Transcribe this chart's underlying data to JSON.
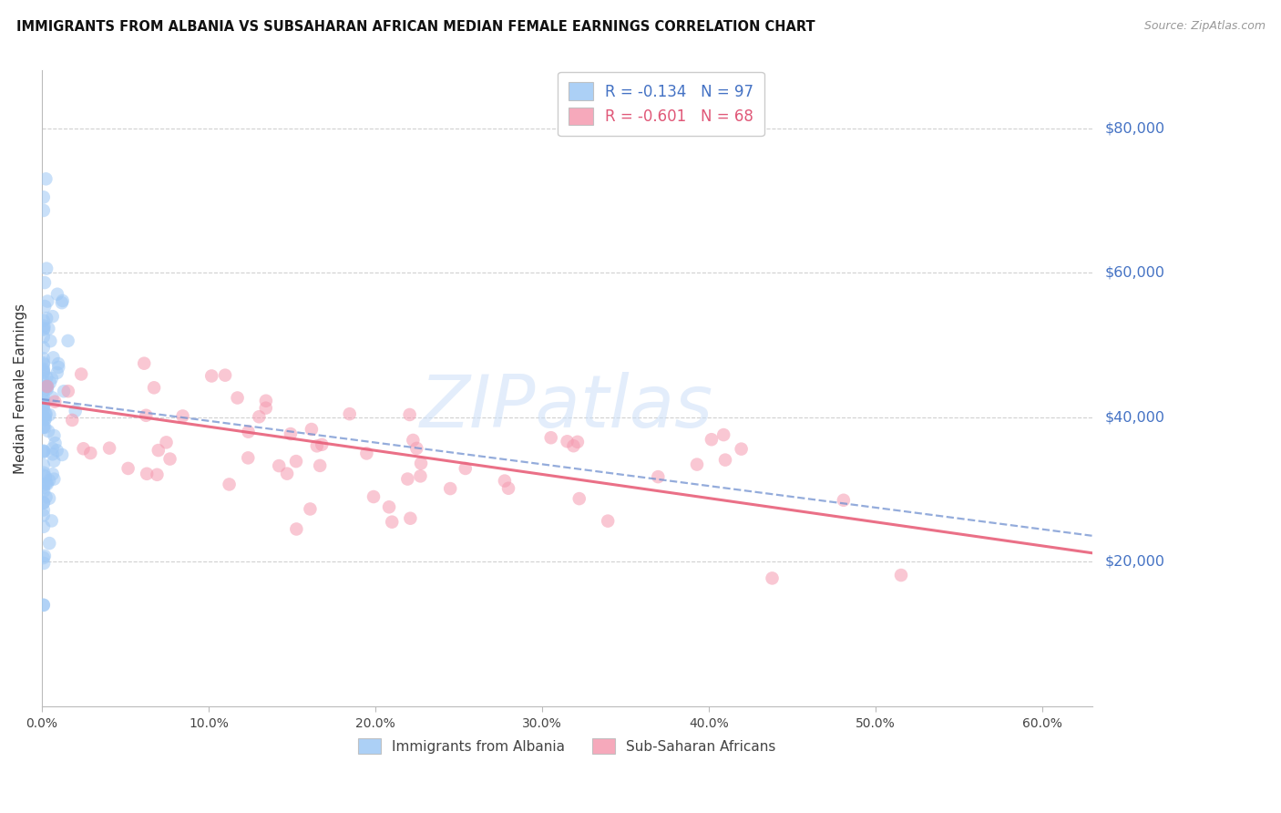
{
  "title": "IMMIGRANTS FROM ALBANIA VS SUBSAHARAN AFRICAN MEDIAN FEMALE EARNINGS CORRELATION CHART",
  "source": "Source: ZipAtlas.com",
  "ylabel": "Median Female Earnings",
  "ytick_values": [
    20000,
    40000,
    60000,
    80000
  ],
  "ytick_labels": [
    "$20,000",
    "$40,000",
    "$60,000",
    "$80,000"
  ],
  "ylim": [
    0,
    88000
  ],
  "xlim": [
    0.0,
    0.63
  ],
  "xtick_positions": [
    0.0,
    0.1,
    0.2,
    0.3,
    0.4,
    0.5,
    0.6
  ],
  "xtick_labels": [
    "0.0%",
    "10.0%",
    "20.0%",
    "30.0%",
    "40.0%",
    "50.0%",
    "60.0%"
  ],
  "watermark": "ZIPatlas",
  "albania_R": "-0.134",
  "albania_N": "97",
  "subsaharan_R": "-0.601",
  "subsaharan_N": "68",
  "albania_color": "#9ec8f5",
  "subsaharan_color": "#f59ab0",
  "albania_line_color": "#7090d0",
  "subsaharan_line_color": "#e8607a",
  "background_color": "#ffffff",
  "grid_color": "#d0d0d0",
  "ytick_color": "#4472c4",
  "title_color": "#111111",
  "source_color": "#999999",
  "legend_albania_label": "R = -0.134   N = 97",
  "legend_subsaharan_label": "R = -0.601   N = 68",
  "bottom_albania_label": "Immigrants from Albania",
  "bottom_subsaharan_label": "Sub-Saharan Africans",
  "albania_line_intercept": 42500,
  "albania_line_slope": -30000,
  "subsaharan_line_intercept": 42000,
  "subsaharan_line_slope": -33000
}
